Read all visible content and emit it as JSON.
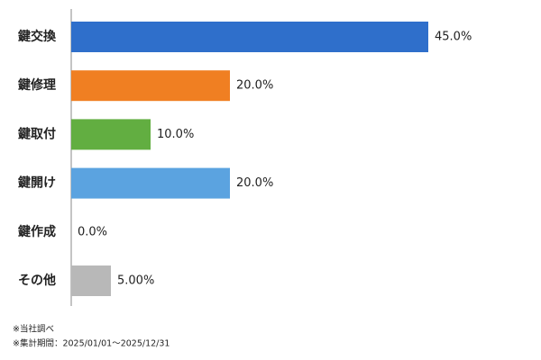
{
  "chart_data": {
    "type": "barh",
    "categories": [
      "鍵交換",
      "鍵修理",
      "鍵取付",
      "鍵開け",
      "鍵作成",
      "その他"
    ],
    "values": [
      45,
      20,
      10,
      20,
      0,
      5
    ],
    "value_labels": [
      "45.0%",
      "20.0%",
      "10.0%",
      "20.0%",
      "0.0%",
      "5.00%"
    ],
    "colors": [
      "#2f6fcb",
      "#f07f22",
      "#62ae41",
      "#5ba3e0",
      "#8c8c8c",
      "#b8b8b8"
    ],
    "notes": [
      "※当社調べ",
      "※集計期間：2025/01/01～2025/12/31"
    ]
  }
}
